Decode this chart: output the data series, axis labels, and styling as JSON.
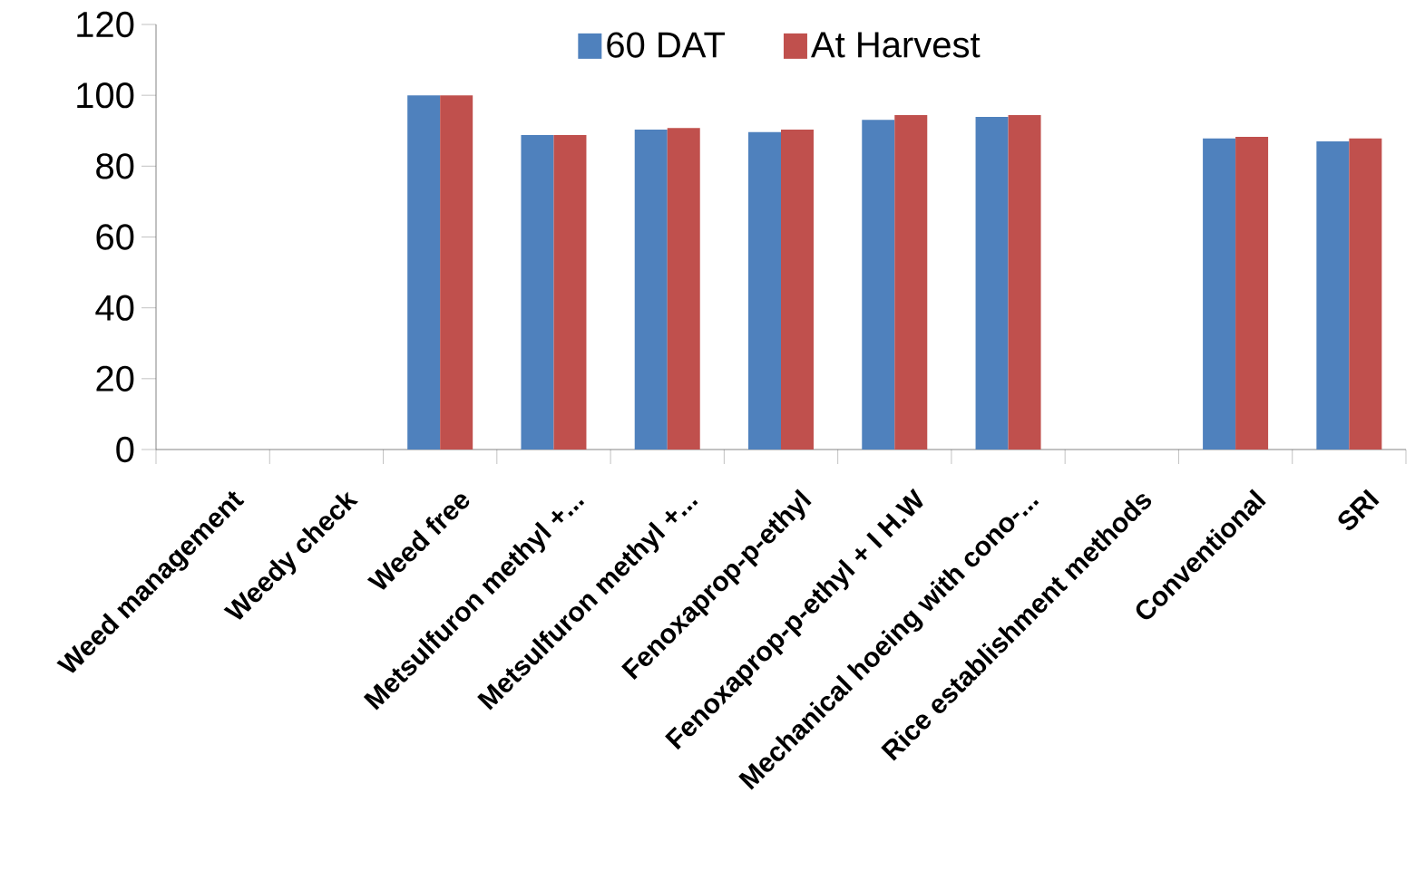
{
  "chart_data": {
    "type": "bar",
    "categories": [
      "Weed management",
      "Weedy check",
      "Weed free",
      "Metsulfuron methyl +...",
      "Metsulfuron methyl +...",
      "Fenoxaprop-p-ethyl",
      "Fenoxaprop-p-ethyl + I H.W",
      "Mechanical hoeing with cono-...",
      "Rice establishment methods",
      "Conventional",
      "SRI"
    ],
    "series": [
      {
        "name": "60 DAT",
        "color": "#4f81bd",
        "values": [
          null,
          0,
          100,
          88.8,
          90.3,
          89.6,
          93.1,
          93.9,
          null,
          87.8,
          87.0
        ]
      },
      {
        "name": "At Harvest",
        "color": "#c0504d",
        "values": [
          null,
          0,
          100,
          88.8,
          90.8,
          90.3,
          94.4,
          94.4,
          null,
          88.3,
          87.8
        ]
      }
    ],
    "ylim": [
      0,
      120
    ],
    "yticks": [
      0,
      20,
      40,
      60,
      80,
      100,
      120
    ],
    "grid": false,
    "legend": "top"
  }
}
